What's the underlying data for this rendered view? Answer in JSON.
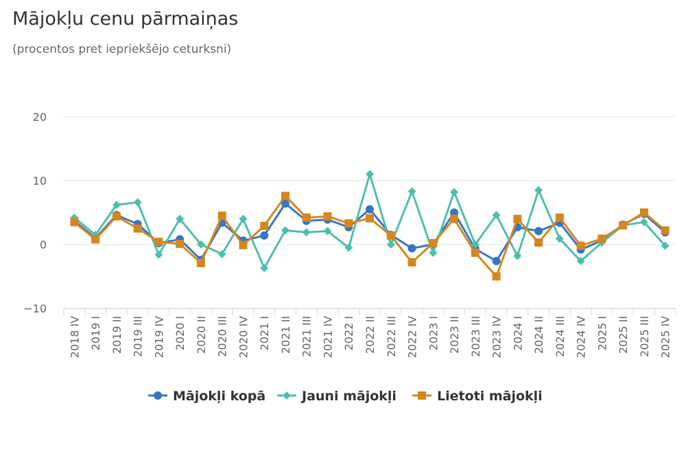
{
  "title": "Mājokļu cenu pārmaiņas",
  "subtitle": "(procentos pret iepriekšējo ceturksni)",
  "chart_data": {
    "type": "line",
    "title": "Mājokļu cenu pārmaiņas",
    "subtitle": "(procentos pret iepriekšējo ceturksni)",
    "xlabel": "",
    "ylabel": "",
    "ylim": [
      -10,
      20
    ],
    "yticks": [
      "20",
      "10",
      "0",
      "−10"
    ],
    "grid": true,
    "legend_position": "bottom",
    "categories": [
      "2018 IV",
      "2019 I",
      "2019 II",
      "2019 III",
      "2019 IV",
      "2020 I",
      "2020 II",
      "2020 III",
      "2020 IV",
      "2021 I",
      "2021 II",
      "2021 III",
      "2021 IV",
      "2022 I",
      "2022 II",
      "2022 III",
      "2022 IV",
      "2023 I",
      "2023 II",
      "2023 III",
      "2023 IV",
      "2024 I",
      "2024 II",
      "2024 III",
      "2024 IV",
      "2025 I",
      "2025 II",
      "2025 III",
      "2025 IV"
    ],
    "series": [
      {
        "name": "Mājokļi kopā",
        "color": "#3575c5",
        "marker": "circle",
        "values": [
          3.7,
          1.0,
          4.6,
          3.2,
          0.2,
          0.8,
          -2.4,
          3.4,
          0.6,
          1.4,
          6.4,
          3.7,
          3.9,
          2.7,
          5.5,
          1.5,
          -0.6,
          0.0,
          5.0,
          -0.7,
          -2.6,
          2.7,
          2.1,
          3.4,
          -0.8,
          0.6,
          3.1,
          4.8,
          1.9
        ]
      },
      {
        "name": "Jauni mājokļi",
        "color": "#4dbfae",
        "marker": "diamond",
        "values": [
          4.2,
          1.5,
          6.2,
          6.6,
          -1.6,
          4.0,
          0.0,
          -1.5,
          4.0,
          -3.7,
          2.2,
          1.9,
          2.1,
          -0.5,
          11.0,
          0.0,
          8.3,
          -1.3,
          8.2,
          0.0,
          4.6,
          -1.8,
          8.5,
          0.9,
          -2.6,
          0.3,
          3.0,
          3.5,
          -0.2
        ]
      },
      {
        "name": "Lietoti mājokļi",
        "color": "#d5861e",
        "marker": "square",
        "values": [
          3.5,
          0.8,
          4.4,
          2.5,
          0.4,
          0.1,
          -2.9,
          4.5,
          -0.1,
          2.9,
          7.6,
          4.2,
          4.4,
          3.3,
          4.1,
          1.4,
          -2.8,
          0.2,
          4.0,
          -1.3,
          -5.0,
          4.0,
          0.3,
          4.2,
          -0.2,
          0.9,
          3.0,
          5.0,
          2.2
        ]
      }
    ]
  }
}
